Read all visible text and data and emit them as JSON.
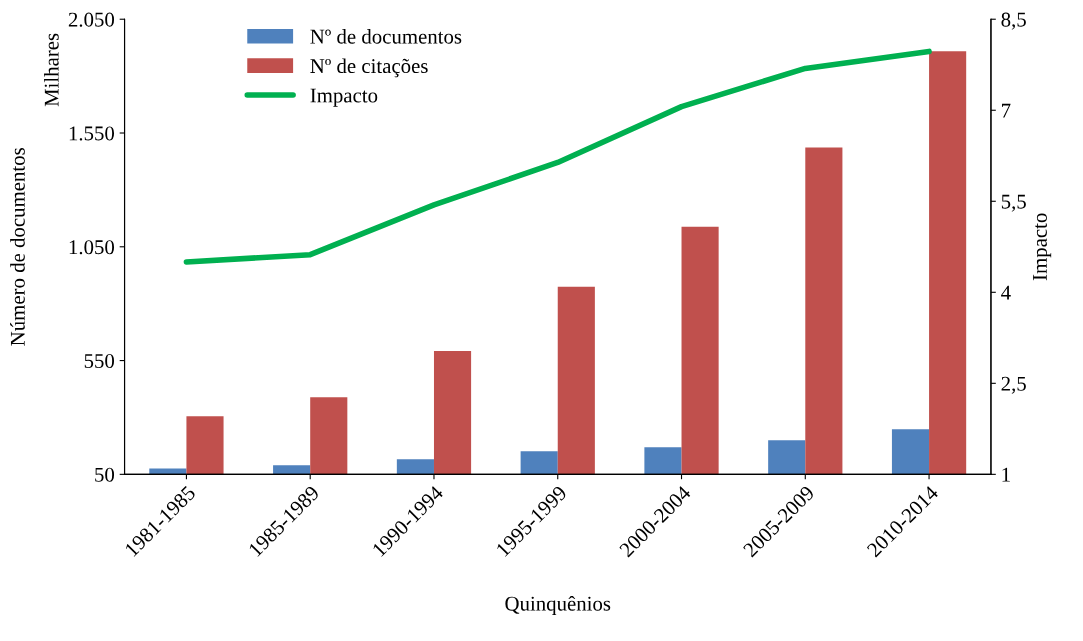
{
  "chart_data": {
    "type": "bar",
    "xlabel": "Quinquênios",
    "ylabel": "Número de documentos",
    "y2label": "Impacto",
    "annotations": [
      "Milhares"
    ],
    "categories": [
      "1981-1985",
      "1985-1989",
      "1990-1994",
      "1995-1999",
      "2000-2004",
      "2005-2009",
      "2010-2014"
    ],
    "series": [
      {
        "name": "Nº de documentos",
        "color": "#4f81bd",
        "values": [
          76,
          90,
          116,
          151,
          169,
          200,
          248
        ]
      },
      {
        "name": "Nº de citações",
        "color": "#c0504d",
        "values": [
          305,
          389,
          592,
          874,
          1138,
          1486,
          1909
        ]
      },
      {
        "name": "Impacto",
        "type": "line",
        "axis": "y2",
        "color": "#00b050",
        "values": [
          4.5,
          4.62,
          5.44,
          6.14,
          7.06,
          7.69,
          7.97
        ]
      }
    ],
    "ylim": [
      50,
      2050
    ],
    "yticks": [
      {
        "value": 50,
        "label": "50"
      },
      {
        "value": 550,
        "label": "550"
      },
      {
        "value": 1050,
        "label": "1.050"
      },
      {
        "value": 1550,
        "label": "1.550"
      },
      {
        "value": 2050,
        "label": "2.050"
      }
    ],
    "y2lim": [
      1,
      8.5
    ],
    "y2ticks": [
      {
        "value": 1,
        "label": "1"
      },
      {
        "value": 2.5,
        "label": "2,5"
      },
      {
        "value": 4,
        "label": "4"
      },
      {
        "value": 5.5,
        "label": "5,5"
      },
      {
        "value": 7,
        "label": "7"
      },
      {
        "value": 8.5,
        "label": "8,5"
      }
    ],
    "grid": false,
    "legend": "top left",
    "marker": "none",
    "line_style": "solid"
  }
}
